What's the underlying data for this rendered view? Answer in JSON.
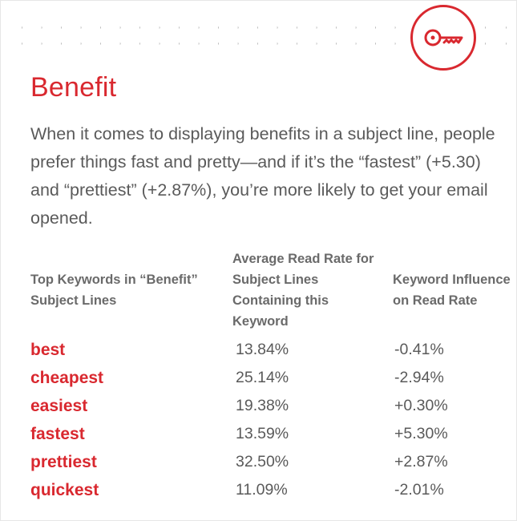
{
  "header": {
    "title": "Benefit",
    "intro": "When it comes to displaying benefits in a subject line, people prefer things fast and pretty—and if it’s the “fastest” (+5.30) and “prettiest” (+2.87%), you’re more likely to get your email opened.",
    "badge_icon": "key-icon"
  },
  "colors": {
    "accent": "#d9282f",
    "text": "#5a5a5a"
  },
  "table": {
    "headers": [
      "Top Keywords in “Benefit” Subject Lines",
      "Average Read Rate for Subject Lines Containing this Keyword",
      "Keyword Influence on Read Rate"
    ],
    "rows": [
      {
        "keyword": "best",
        "rate": "13.84%",
        "influence": "-0.41%"
      },
      {
        "keyword": "cheapest",
        "rate": "25.14%",
        "influence": "-2.94%"
      },
      {
        "keyword": "easiest",
        "rate": "19.38%",
        "influence": "+0.30%"
      },
      {
        "keyword": "fastest",
        "rate": "13.59%",
        "influence": "+5.30%"
      },
      {
        "keyword": "prettiest",
        "rate": "32.50%",
        "influence": "+2.87%"
      },
      {
        "keyword": "quickest",
        "rate": "11.09%",
        "influence": "-2.01%"
      }
    ]
  }
}
